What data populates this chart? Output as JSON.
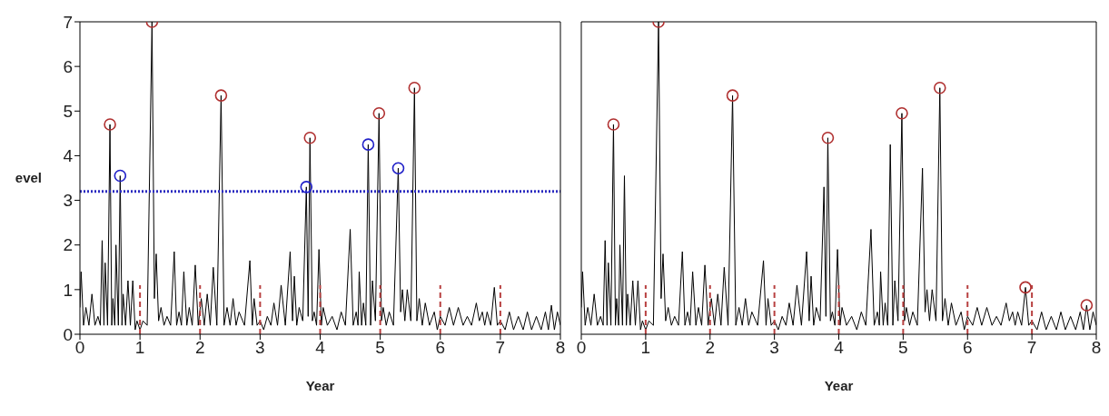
{
  "chart_data": [
    {
      "type": "line",
      "xlabel": "Year",
      "ylabel": "evel",
      "xlim": [
        0,
        8
      ],
      "xticks": [
        0,
        1,
        2,
        3,
        4,
        5,
        6,
        7,
        8
      ],
      "ylim": [
        0,
        7
      ],
      "yticks": [
        0,
        1,
        2,
        3,
        4,
        5,
        6,
        7
      ],
      "ref_lines": [
        {
          "axis": "y",
          "value": 3.2,
          "color": "#2b2bc0",
          "line_style": "dotted"
        }
      ],
      "series": [
        {
          "type": "line",
          "color": "#000000",
          "marker": "none",
          "line_style": "solid",
          "x": [
            0,
            0.02,
            0.06,
            0.1,
            0.15,
            0.2,
            0.25,
            0.3,
            0.34,
            0.37,
            0.4,
            0.42,
            0.46,
            0.5,
            0.53,
            0.55,
            0.58,
            0.6,
            0.64,
            0.67,
            0.7,
            0.72,
            0.76,
            0.8,
            0.84,
            0.88,
            0.92,
            0.95,
            1.0,
            1.05,
            1.12,
            1.2,
            1.24,
            1.27,
            1.31,
            1.35,
            1.4,
            1.45,
            1.51,
            1.57,
            1.61,
            1.65,
            1.69,
            1.73,
            1.78,
            1.82,
            1.87,
            1.92,
            1.97,
            2.02,
            2.07,
            2.12,
            2.17,
            2.22,
            2.28,
            2.35,
            2.4,
            2.45,
            2.5,
            2.55,
            2.6,
            2.65,
            2.74,
            2.83,
            2.87,
            2.9,
            2.95,
            3.0,
            3.06,
            3.12,
            3.18,
            3.23,
            3.29,
            3.35,
            3.42,
            3.5,
            3.54,
            3.57,
            3.61,
            3.65,
            3.71,
            3.77,
            3.8,
            3.83,
            3.87,
            3.9,
            3.94,
            3.98,
            4.02,
            4.05,
            4.12,
            4.2,
            4.28,
            4.35,
            4.42,
            4.5,
            4.55,
            4.6,
            4.63,
            4.65,
            4.69,
            4.72,
            4.76,
            4.8,
            4.84,
            4.87,
            4.92,
            4.98,
            5.02,
            5.05,
            5.1,
            5.15,
            5.22,
            5.3,
            5.34,
            5.37,
            5.41,
            5.45,
            5.51,
            5.57,
            5.61,
            5.65,
            5.7,
            5.75,
            5.82,
            5.9,
            5.95,
            6.0,
            6.08,
            6.15,
            6.22,
            6.3,
            6.38,
            6.45,
            6.52,
            6.6,
            6.65,
            6.7,
            6.74,
            6.78,
            6.84,
            6.9,
            6.95,
            7.0,
            7.08,
            7.15,
            7.22,
            7.3,
            7.38,
            7.45,
            7.52,
            7.6,
            7.68,
            7.75,
            7.8,
            7.85,
            7.9,
            7.95,
            8.0
          ],
          "values": [
            0.6,
            1.4,
            0.2,
            0.6,
            0.2,
            0.9,
            0.2,
            0.4,
            0.2,
            2.1,
            0.2,
            1.6,
            0.2,
            4.7,
            0.2,
            0.8,
            0.2,
            2.0,
            0.2,
            3.55,
            0.2,
            0.9,
            0.2,
            1.2,
            0.2,
            1.2,
            0.1,
            0.3,
            0.1,
            0.3,
            0.2,
            7.0,
            0.8,
            1.8,
            0.3,
            0.6,
            0.2,
            0.4,
            0.2,
            1.85,
            0.2,
            0.5,
            0.2,
            1.4,
            0.2,
            0.6,
            0.2,
            1.55,
            0.2,
            0.8,
            0.2,
            0.9,
            0.2,
            1.5,
            0.2,
            5.35,
            0.2,
            0.6,
            0.2,
            0.8,
            0.2,
            0.5,
            0.2,
            1.65,
            0.2,
            0.8,
            0.2,
            0.3,
            0.1,
            0.4,
            0.2,
            0.7,
            0.2,
            1.1,
            0.2,
            1.85,
            0.3,
            1.3,
            0.2,
            0.6,
            0.3,
            3.3,
            0.4,
            4.4,
            0.3,
            0.5,
            0.2,
            1.9,
            0.2,
            0.6,
            0.2,
            0.4,
            0.1,
            0.5,
            0.2,
            2.35,
            0.2,
            0.5,
            0.2,
            1.4,
            0.2,
            0.7,
            0.2,
            4.25,
            0.2,
            1.2,
            0.3,
            4.95,
            0.3,
            0.6,
            0.2,
            0.5,
            0.2,
            3.72,
            0.5,
            1.0,
            0.3,
            1.0,
            0.3,
            5.52,
            0.3,
            0.8,
            0.2,
            0.7,
            0.2,
            0.5,
            0.1,
            0.4,
            0.2,
            0.6,
            0.2,
            0.6,
            0.2,
            0.4,
            0.2,
            0.7,
            0.3,
            0.5,
            0.2,
            0.5,
            0.2,
            1.05,
            0.2,
            0.3,
            0.1,
            0.5,
            0.1,
            0.4,
            0.1,
            0.5,
            0.1,
            0.4,
            0.1,
            0.5,
            0.1,
            0.65,
            0.1,
            0.5,
            0.2
          ]
        },
        {
          "type": "line",
          "color": "#b84040",
          "marker": "none",
          "line_style": "dashed",
          "x": [
            1,
            1
          ],
          "values": [
            0,
            1.1
          ]
        },
        {
          "type": "line",
          "color": "#b84040",
          "marker": "none",
          "line_style": "dashed",
          "x": [
            2,
            2
          ],
          "values": [
            0,
            1.1
          ]
        },
        {
          "type": "line",
          "color": "#b84040",
          "marker": "none",
          "line_style": "dashed",
          "x": [
            3,
            3
          ],
          "values": [
            0,
            1.1
          ]
        },
        {
          "type": "line",
          "color": "#b84040",
          "marker": "none",
          "line_style": "dashed",
          "x": [
            4,
            4
          ],
          "values": [
            0,
            1.1
          ]
        },
        {
          "type": "line",
          "color": "#b84040",
          "marker": "none",
          "line_style": "dashed",
          "x": [
            5,
            5
          ],
          "values": [
            0,
            1.1
          ]
        },
        {
          "type": "line",
          "color": "#b84040",
          "marker": "none",
          "line_style": "dashed",
          "x": [
            6,
            6
          ],
          "values": [
            0,
            1.1
          ]
        },
        {
          "type": "line",
          "color": "#b84040",
          "marker": "none",
          "line_style": "dashed",
          "x": [
            7,
            7
          ],
          "values": [
            0,
            1.1
          ]
        },
        {
          "type": "scatter",
          "color": "#b03030",
          "marker": "circle",
          "x": [
            0.5,
            1.2,
            2.35,
            3.83,
            4.98,
            5.57
          ],
          "values": [
            4.7,
            7.0,
            5.35,
            4.4,
            4.95,
            5.52
          ]
        },
        {
          "type": "scatter",
          "color": "#2020c8",
          "marker": "circle",
          "x": [
            0.67,
            3.77,
            4.8,
            5.3
          ],
          "values": [
            3.55,
            3.3,
            4.25,
            3.72
          ]
        }
      ]
    },
    {
      "type": "line",
      "xlabel": "Year",
      "xlim": [
        0,
        8
      ],
      "xticks": [
        0,
        1,
        2,
        3,
        4,
        5,
        6,
        7,
        8
      ],
      "ylim": [
        0,
        7
      ],
      "yticks": [
        0,
        1,
        2,
        3,
        4,
        5,
        6,
        7
      ],
      "tick_labels": "x",
      "series": [
        {
          "type": "line",
          "color": "#000000",
          "marker": "none",
          "line_style": "solid",
          "x": [
            0,
            0.02,
            0.06,
            0.1,
            0.15,
            0.2,
            0.25,
            0.3,
            0.34,
            0.37,
            0.4,
            0.42,
            0.46,
            0.5,
            0.53,
            0.55,
            0.58,
            0.6,
            0.64,
            0.67,
            0.7,
            0.72,
            0.76,
            0.8,
            0.84,
            0.88,
            0.92,
            0.95,
            1.0,
            1.05,
            1.12,
            1.2,
            1.24,
            1.27,
            1.31,
            1.35,
            1.4,
            1.45,
            1.51,
            1.57,
            1.61,
            1.65,
            1.69,
            1.73,
            1.78,
            1.82,
            1.87,
            1.92,
            1.97,
            2.02,
            2.07,
            2.12,
            2.17,
            2.22,
            2.28,
            2.35,
            2.4,
            2.45,
            2.5,
            2.55,
            2.6,
            2.65,
            2.74,
            2.83,
            2.87,
            2.9,
            2.95,
            3.0,
            3.06,
            3.12,
            3.18,
            3.23,
            3.29,
            3.35,
            3.42,
            3.5,
            3.54,
            3.57,
            3.61,
            3.65,
            3.71,
            3.77,
            3.8,
            3.83,
            3.87,
            3.9,
            3.94,
            3.98,
            4.02,
            4.05,
            4.12,
            4.2,
            4.28,
            4.35,
            4.42,
            4.5,
            4.55,
            4.6,
            4.63,
            4.65,
            4.69,
            4.72,
            4.76,
            4.8,
            4.84,
            4.87,
            4.92,
            4.98,
            5.02,
            5.05,
            5.1,
            5.15,
            5.22,
            5.3,
            5.34,
            5.37,
            5.41,
            5.45,
            5.51,
            5.57,
            5.61,
            5.65,
            5.7,
            5.75,
            5.82,
            5.9,
            5.95,
            6.0,
            6.08,
            6.15,
            6.22,
            6.3,
            6.38,
            6.45,
            6.52,
            6.6,
            6.65,
            6.7,
            6.74,
            6.78,
            6.84,
            6.9,
            6.95,
            7.0,
            7.08,
            7.15,
            7.22,
            7.3,
            7.38,
            7.45,
            7.52,
            7.6,
            7.68,
            7.75,
            7.8,
            7.85,
            7.9,
            7.95,
            8.0
          ],
          "values": [
            0.6,
            1.4,
            0.2,
            0.6,
            0.2,
            0.9,
            0.2,
            0.4,
            0.2,
            2.1,
            0.2,
            1.6,
            0.2,
            4.7,
            0.2,
            0.8,
            0.2,
            2.0,
            0.2,
            3.55,
            0.2,
            0.9,
            0.2,
            1.2,
            0.2,
            1.2,
            0.1,
            0.3,
            0.1,
            0.3,
            0.2,
            7.0,
            0.8,
            1.8,
            0.3,
            0.6,
            0.2,
            0.4,
            0.2,
            1.85,
            0.2,
            0.5,
            0.2,
            1.4,
            0.2,
            0.6,
            0.2,
            1.55,
            0.2,
            0.8,
            0.2,
            0.9,
            0.2,
            1.5,
            0.2,
            5.35,
            0.2,
            0.6,
            0.2,
            0.8,
            0.2,
            0.5,
            0.2,
            1.65,
            0.2,
            0.8,
            0.2,
            0.3,
            0.1,
            0.4,
            0.2,
            0.7,
            0.2,
            1.1,
            0.2,
            1.85,
            0.3,
            1.3,
            0.2,
            0.6,
            0.3,
            3.3,
            0.4,
            4.4,
            0.3,
            0.5,
            0.2,
            1.9,
            0.2,
            0.6,
            0.2,
            0.4,
            0.1,
            0.5,
            0.2,
            2.35,
            0.2,
            0.5,
            0.2,
            1.4,
            0.2,
            0.7,
            0.2,
            4.25,
            0.2,
            1.2,
            0.3,
            4.95,
            0.3,
            0.6,
            0.2,
            0.5,
            0.2,
            3.72,
            0.5,
            1.0,
            0.3,
            1.0,
            0.3,
            5.52,
            0.3,
            0.8,
            0.2,
            0.7,
            0.2,
            0.5,
            0.1,
            0.4,
            0.2,
            0.6,
            0.2,
            0.6,
            0.2,
            0.4,
            0.2,
            0.7,
            0.3,
            0.5,
            0.2,
            0.5,
            0.2,
            1.05,
            0.2,
            0.3,
            0.1,
            0.5,
            0.1,
            0.4,
            0.1,
            0.5,
            0.1,
            0.4,
            0.1,
            0.5,
            0.1,
            0.65,
            0.1,
            0.5,
            0.2
          ]
        },
        {
          "type": "line",
          "color": "#b84040",
          "marker": "none",
          "line_style": "dashed",
          "x": [
            1,
            1
          ],
          "values": [
            0,
            1.1
          ]
        },
        {
          "type": "line",
          "color": "#b84040",
          "marker": "none",
          "line_style": "dashed",
          "x": [
            2,
            2
          ],
          "values": [
            0,
            1.1
          ]
        },
        {
          "type": "line",
          "color": "#b84040",
          "marker": "none",
          "line_style": "dashed",
          "x": [
            3,
            3
          ],
          "values": [
            0,
            1.1
          ]
        },
        {
          "type": "line",
          "color": "#b84040",
          "marker": "none",
          "line_style": "dashed",
          "x": [
            4,
            4
          ],
          "values": [
            0,
            1.1
          ]
        },
        {
          "type": "line",
          "color": "#b84040",
          "marker": "none",
          "line_style": "dashed",
          "x": [
            5,
            5
          ],
          "values": [
            0,
            1.1
          ]
        },
        {
          "type": "line",
          "color": "#b84040",
          "marker": "none",
          "line_style": "dashed",
          "x": [
            6,
            6
          ],
          "values": [
            0,
            1.1
          ]
        },
        {
          "type": "line",
          "color": "#b84040",
          "marker": "none",
          "line_style": "dashed",
          "x": [
            7,
            7
          ],
          "values": [
            0,
            1.1
          ]
        },
        {
          "type": "scatter",
          "color": "#b03030",
          "marker": "circle",
          "x": [
            0.5,
            1.2,
            2.35,
            3.83,
            4.98,
            5.57,
            6.9,
            7.85
          ],
          "values": [
            4.7,
            7.0,
            5.35,
            4.4,
            4.95,
            5.52,
            1.05,
            0.65
          ]
        }
      ]
    }
  ]
}
